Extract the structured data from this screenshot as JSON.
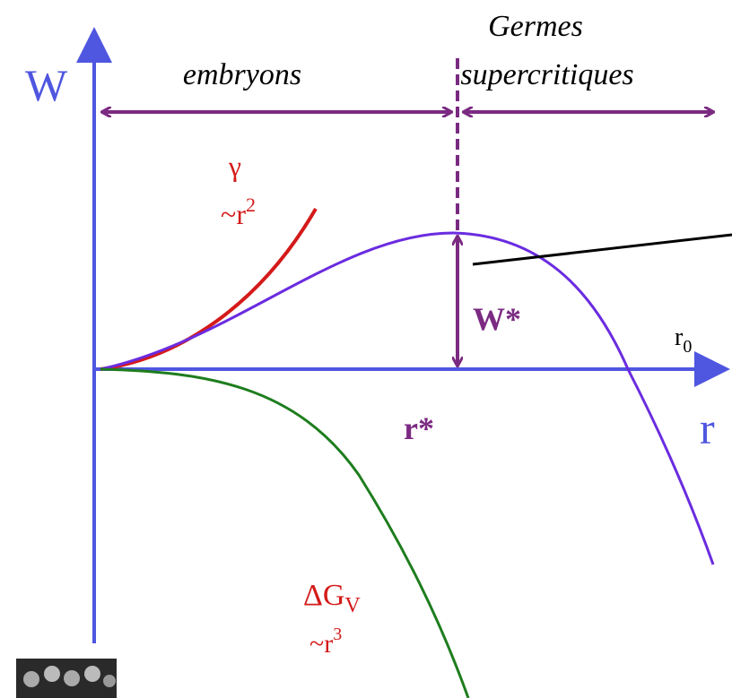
{
  "axes": {
    "y_label": "W",
    "x_label": "r"
  },
  "regions": {
    "left": "embryons",
    "right_line1": "Germes",
    "right_line2": "supercritiques"
  },
  "surface_term": {
    "symbol": "γ",
    "scaling_base": "~r",
    "scaling_exponent": "2"
  },
  "volume_term": {
    "symbol": "ΔG",
    "symbol_subscript": "V",
    "scaling_base": "~r",
    "scaling_exponent": "3"
  },
  "barrier": {
    "height_label": "W*",
    "radius_label": "r*"
  },
  "root": {
    "base": "r",
    "subscript": "0"
  }
}
